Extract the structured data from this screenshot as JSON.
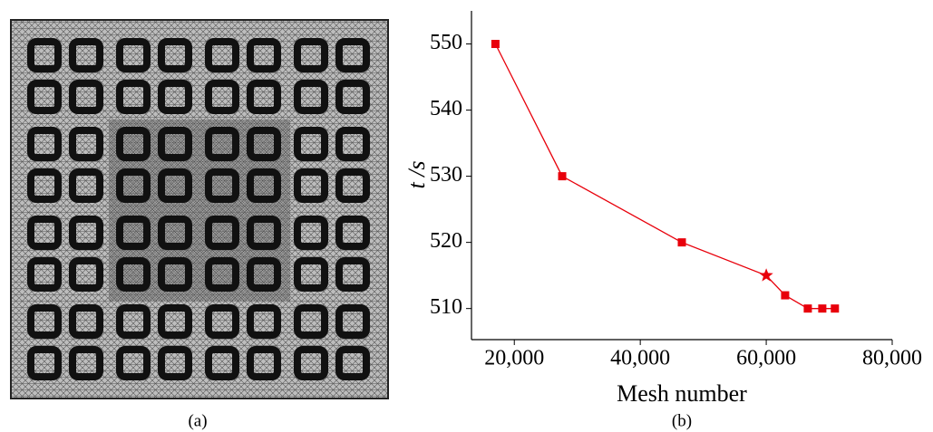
{
  "panel_labels": [
    "(a)",
    "(b)"
  ],
  "chart_data": {
    "type": "line",
    "x_label": "Mesh number",
    "y_label": "t /s",
    "x": [
      17000,
      27600,
      46600,
      60000,
      63000,
      66600,
      68900,
      70900
    ],
    "series": [
      {
        "color": "#e8000b",
        "values": [
          550,
          530,
          520,
          515,
          512,
          510,
          510,
          510
        ],
        "markers": [
          "square",
          "square",
          "square",
          "star",
          "square",
          "square",
          "square",
          "square"
        ]
      }
    ],
    "xlim": [
      13200,
      80000
    ],
    "xticks": [
      {
        "value": 20000,
        "label": "20,000"
      },
      {
        "value": 40000,
        "label": "40,000"
      },
      {
        "value": 60000,
        "label": "60,000"
      },
      {
        "value": 80000,
        "label": "80,000"
      }
    ],
    "ylim": [
      505.3,
      555
    ],
    "yticks": [
      510,
      520,
      530,
      540,
      550
    ]
  }
}
